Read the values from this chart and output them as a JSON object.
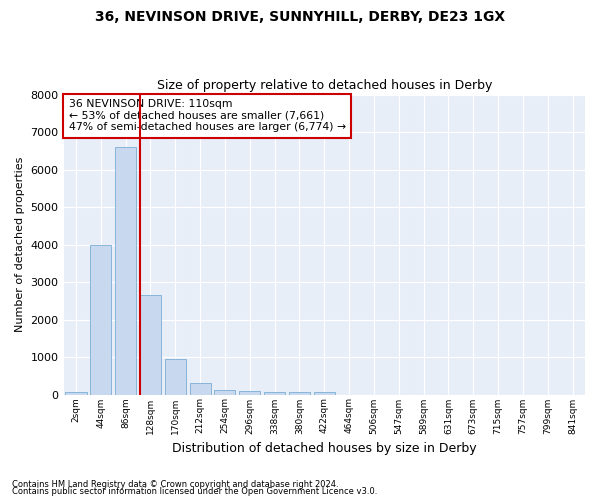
{
  "title1": "36, NEVINSON DRIVE, SUNNYHILL, DERBY, DE23 1GX",
  "title2": "Size of property relative to detached houses in Derby",
  "xlabel": "Distribution of detached houses by size in Derby",
  "ylabel": "Number of detached properties",
  "bar_color": "#c8d8ee",
  "bar_edge_color": "#7aadd4",
  "background_color": "#e8eef8",
  "fig_background": "#ffffff",
  "grid_color": "#ffffff",
  "annotation_box_color": "#ffffff",
  "annotation_border_color": "#cc0000",
  "vline_color": "#cc0000",
  "annotation_line1": "36 NEVINSON DRIVE: 110sqm",
  "annotation_line2": "← 53% of detached houses are smaller (7,661)",
  "annotation_line3": "47% of semi-detached houses are larger (6,774) →",
  "property_size_idx": 2,
  "categories": [
    "2sqm",
    "44sqm",
    "86sqm",
    "128sqm",
    "170sqm",
    "212sqm",
    "254sqm",
    "296sqm",
    "338sqm",
    "380sqm",
    "422sqm",
    "464sqm",
    "506sqm",
    "547sqm",
    "589sqm",
    "631sqm",
    "673sqm",
    "715sqm",
    "757sqm",
    "799sqm",
    "841sqm"
  ],
  "values": [
    60,
    4000,
    6600,
    2650,
    950,
    310,
    120,
    90,
    65,
    60,
    60,
    0,
    0,
    0,
    0,
    0,
    0,
    0,
    0,
    0,
    0
  ],
  "ylim": [
    0,
    8000
  ],
  "yticks": [
    0,
    1000,
    2000,
    3000,
    4000,
    5000,
    6000,
    7000,
    8000
  ],
  "footnote1": "Contains HM Land Registry data © Crown copyright and database right 2024.",
  "footnote2": "Contains public sector information licensed under the Open Government Licence v3.0."
}
